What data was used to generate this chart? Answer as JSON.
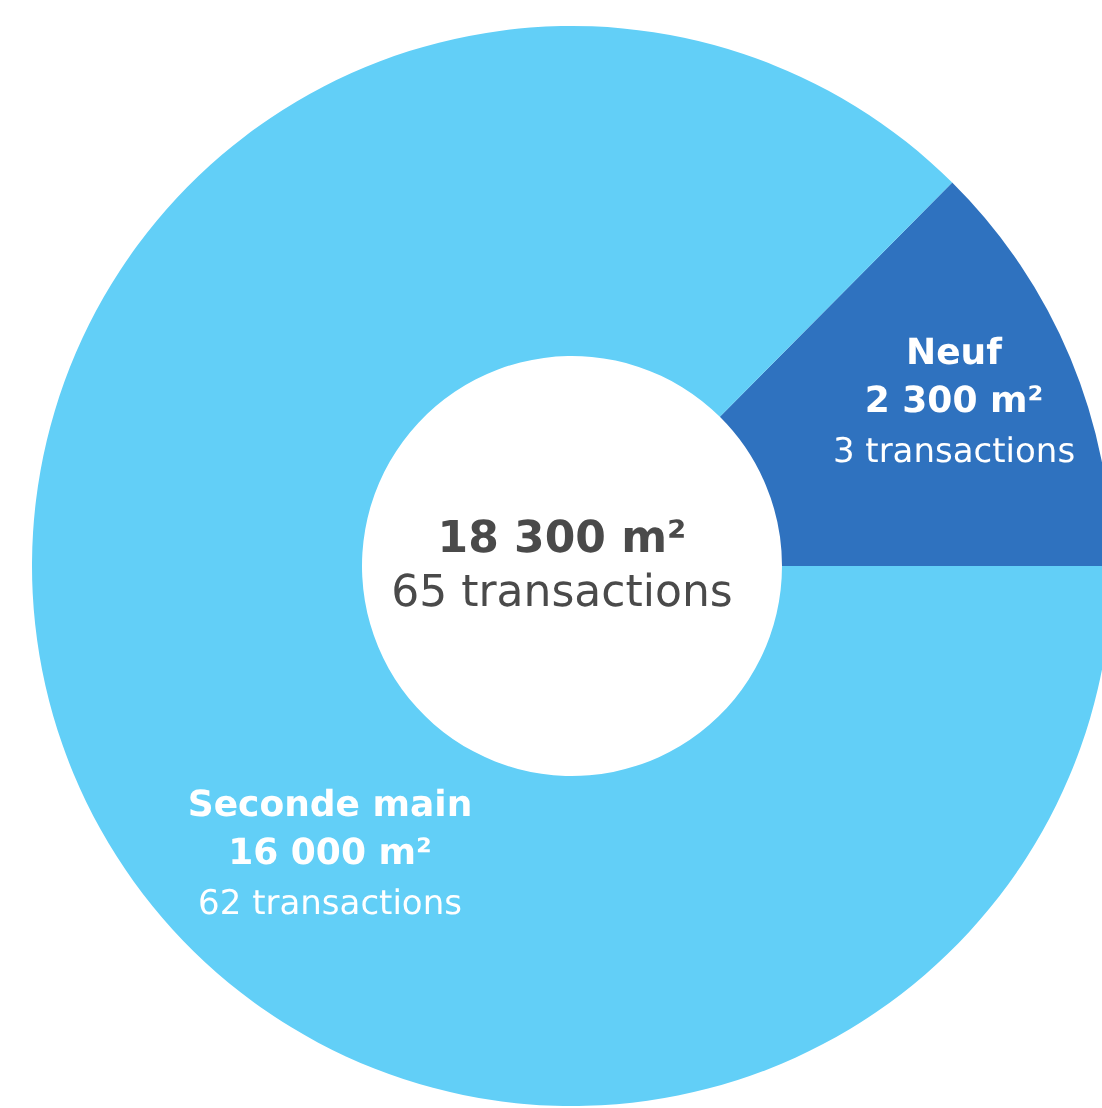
{
  "chart_data": {
    "type": "donut",
    "categories": [
      "Neuf",
      "Seconde main"
    ],
    "values": [
      2300,
      16000
    ],
    "colors": [
      "#2f72bf",
      "#62cff7"
    ],
    "value_labels": [
      "2 300 m²",
      "16 000 m²"
    ],
    "annotations": [
      "18 300 m²",
      "65 transactions",
      "3 transactions",
      "62 transactions"
    ]
  }
}
